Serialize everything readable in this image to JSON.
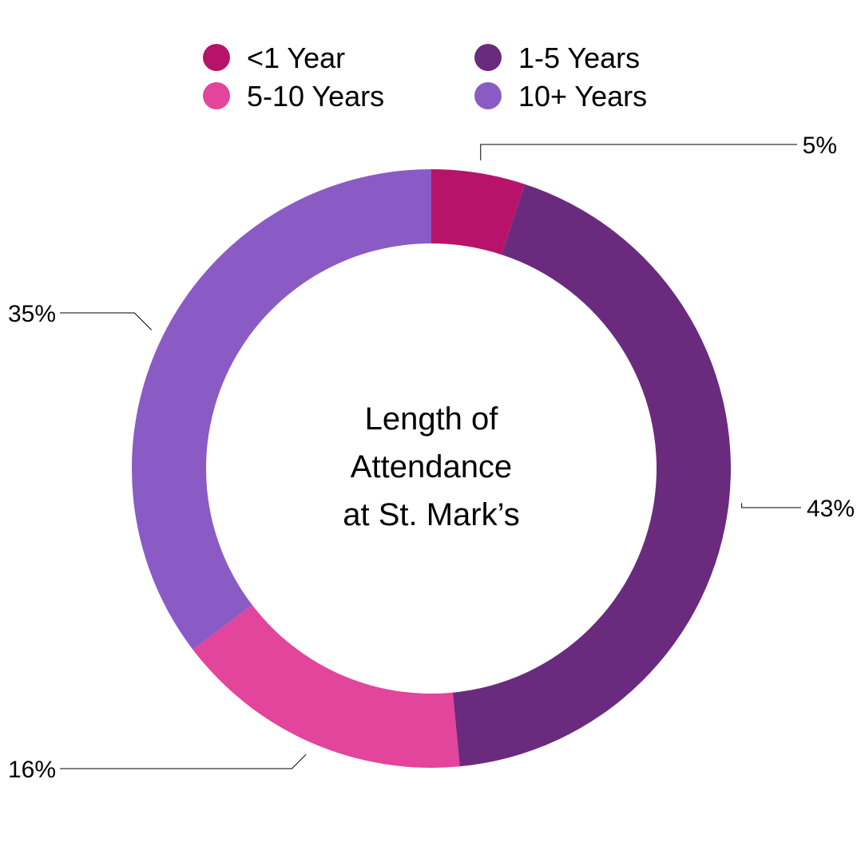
{
  "chart_data": {
    "type": "pie",
    "variant": "donut",
    "categories": [
      "<1 Year",
      "1-5 Years",
      "5-10 Years",
      "10+ Years"
    ],
    "values": [
      5,
      43,
      16,
      35
    ],
    "value_labels": [
      "5%",
      "43%",
      "16%",
      "35%"
    ],
    "colors": [
      "#B8136A",
      "#6A2B7E",
      "#E2459B",
      "#8A5BC4"
    ],
    "center_title": [
      "Length of",
      "Attendance",
      "at St. Mark’s"
    ],
    "legend_position": "top"
  }
}
